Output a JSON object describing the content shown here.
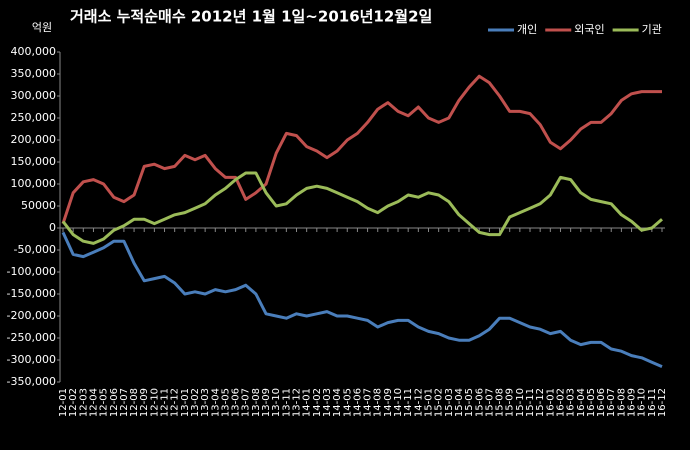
{
  "chart_data": {
    "type": "line",
    "title": "거래소 누적순매수 2012년 1월 1일~2016년12월2일",
    "y_label": "억원",
    "categories": [
      "12-01",
      "12-02",
      "12-03",
      "12-04",
      "12-05",
      "12-06",
      "12-07",
      "12-08",
      "12-09",
      "12-10",
      "12-11",
      "12-12",
      "13-01",
      "13-02",
      "13-03",
      "13-04",
      "13-05",
      "13-06",
      "13-07",
      "13-08",
      "13-09",
      "13-10",
      "13-11",
      "13-12",
      "14-01",
      "14-02",
      "14-03",
      "14-04",
      "14-05",
      "14-06",
      "14-07",
      "14-08",
      "14-09",
      "14-10",
      "14-11",
      "14-12",
      "15-01",
      "15-02",
      "15-03",
      "15-04",
      "15-05",
      "15-06",
      "15-07",
      "15-08",
      "15-09",
      "15-10",
      "15-11",
      "15-12",
      "16-01",
      "16-02",
      "16-03",
      "16-04",
      "16-05",
      "16-06",
      "16-07",
      "16-08",
      "16-09",
      "16-10",
      "16-11",
      "16-12"
    ],
    "series": [
      {
        "name": "개인",
        "color": "#4a7ebb",
        "values": [
          -10000,
          -60000,
          -65000,
          -55000,
          -45000,
          -30000,
          -30000,
          -80000,
          -120000,
          -115000,
          -110000,
          -125000,
          -150000,
          -145000,
          -150000,
          -140000,
          -145000,
          -140000,
          -130000,
          -150000,
          -195000,
          -200000,
          -205000,
          -195000,
          -200000,
          -195000,
          -190000,
          -200000,
          -200000,
          -205000,
          -210000,
          -225000,
          -215000,
          -210000,
          -210000,
          -225000,
          -235000,
          -240000,
          -250000,
          -255000,
          -255000,
          -245000,
          -230000,
          -205000,
          -205000,
          -215000,
          -225000,
          -230000,
          -240000,
          -235000,
          -255000,
          -265000,
          -260000,
          -260000,
          -275000,
          -280000,
          -290000,
          -295000,
          -305000,
          -315000
        ]
      },
      {
        "name": "외국인",
        "color": "#c0504d",
        "values": [
          10000,
          80000,
          105000,
          110000,
          100000,
          70000,
          60000,
          75000,
          140000,
          145000,
          135000,
          140000,
          165000,
          155000,
          165000,
          135000,
          115000,
          115000,
          65000,
          80000,
          100000,
          170000,
          215000,
          210000,
          185000,
          175000,
          160000,
          175000,
          200000,
          215000,
          240000,
          270000,
          285000,
          265000,
          255000,
          275000,
          250000,
          240000,
          250000,
          290000,
          320000,
          345000,
          330000,
          300000,
          265000,
          265000,
          260000,
          235000,
          195000,
          180000,
          200000,
          225000,
          240000,
          240000,
          260000,
          290000,
          305000,
          310000,
          310000,
          310000
        ]
      },
      {
        "name": "기관",
        "color": "#9bbb59",
        "values": [
          15000,
          -15000,
          -30000,
          -35000,
          -25000,
          -5000,
          5000,
          20000,
          20000,
          10000,
          20000,
          30000,
          35000,
          45000,
          55000,
          75000,
          90000,
          110000,
          125000,
          125000,
          80000,
          50000,
          55000,
          75000,
          90000,
          95000,
          90000,
          80000,
          70000,
          60000,
          45000,
          35000,
          50000,
          60000,
          75000,
          70000,
          80000,
          75000,
          60000,
          30000,
          10000,
          -10000,
          -15000,
          -15000,
          25000,
          35000,
          45000,
          55000,
          75000,
          115000,
          110000,
          80000,
          65000,
          60000,
          55000,
          30000,
          15000,
          -5000,
          0,
          20000
        ]
      }
    ],
    "ylim": [
      -350000,
      400000
    ],
    "yticks": [
      {
        "value": -350000,
        "label": "-350,000"
      },
      {
        "value": -300000,
        "label": "-300,000"
      },
      {
        "value": -250000,
        "label": "-250,000"
      },
      {
        "value": -200000,
        "label": "-200,000"
      },
      {
        "value": -150000,
        "label": "-150,000"
      },
      {
        "value": -100000,
        "label": "-100,000"
      },
      {
        "value": -50000,
        "label": "-50,000"
      },
      0,
      {
        "value": 50000,
        "label": "50000"
      },
      {
        "value": 100000,
        "label": "100,000"
      },
      {
        "value": 150000,
        "label": "150,000"
      },
      {
        "value": 200000,
        "label": "200,000"
      },
      {
        "value": 250000,
        "label": "250,000"
      },
      {
        "value": 300000,
        "label": "300,000"
      },
      {
        "value": 350000,
        "label": "350,000"
      },
      {
        "value": 400000,
        "label": "400,000"
      }
    ],
    "grid": false,
    "legend": "top-right"
  }
}
